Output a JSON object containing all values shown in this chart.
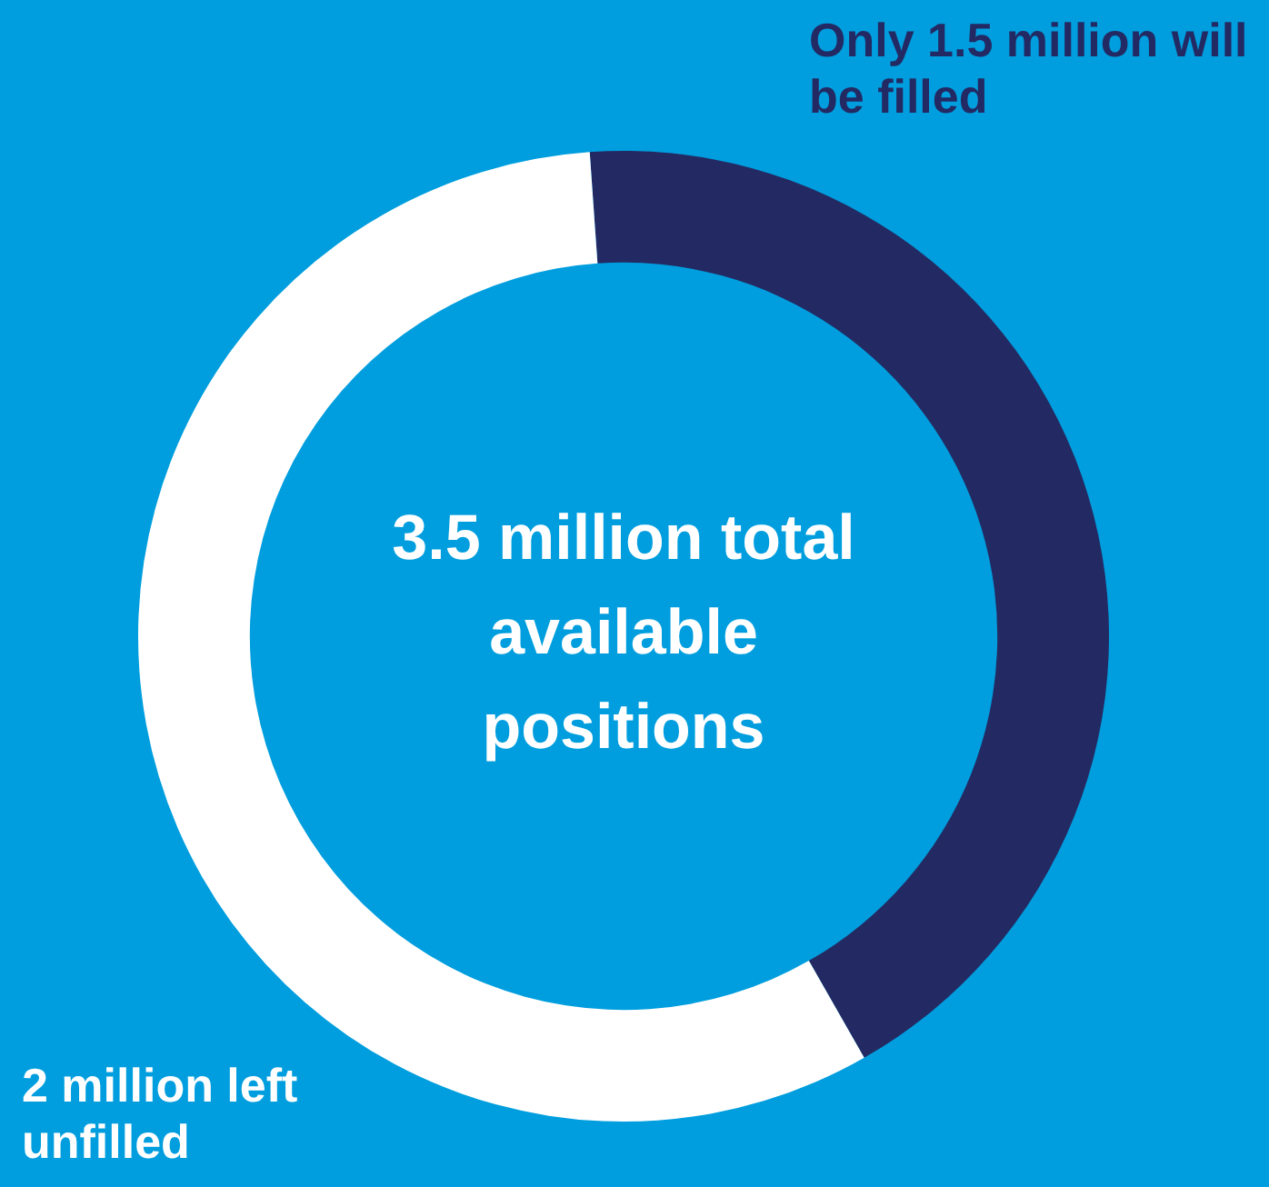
{
  "chart_data": {
    "type": "donut",
    "categories": [
      "Only 1.5 million will be filled",
      "2 million left unfilled"
    ],
    "values": [
      1.5,
      2
    ],
    "colors": [
      "#232a63",
      "#ffffff"
    ],
    "annotations": [
      "3.5 million total available positions"
    ],
    "legend": false
  }
}
